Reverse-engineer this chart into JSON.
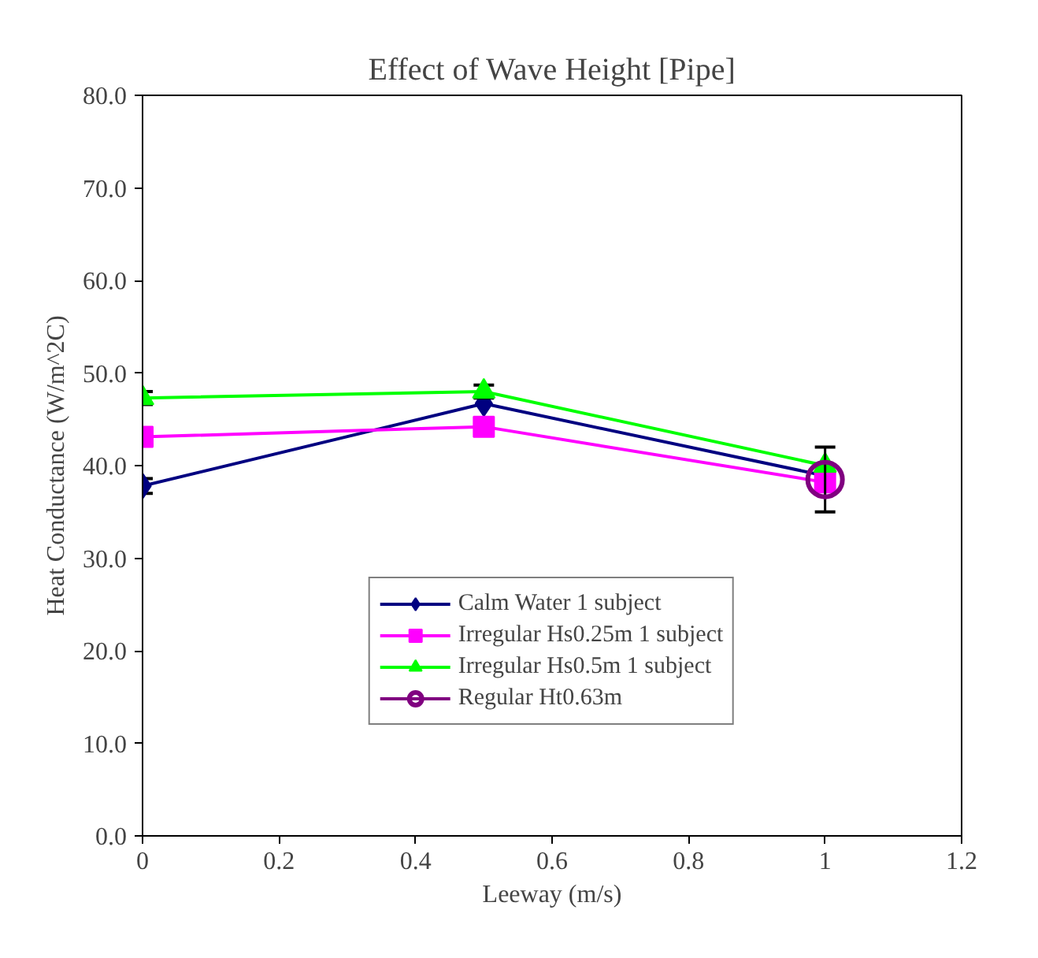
{
  "chart_data": {
    "type": "line",
    "title": "Effect of Wave Height [Pipe]",
    "xlabel": "Leeway (m/s)",
    "ylabel": "Heat Conductance (W/m^2C)",
    "xlim": [
      0,
      1.2
    ],
    "xticks": [
      0,
      0.2,
      0.4,
      0.6,
      0.8,
      1,
      1.2
    ],
    "ylim": [
      0,
      80
    ],
    "yticks": [
      {
        "value": 0,
        "label": "0.0"
      },
      {
        "value": 10,
        "label": "10.0"
      },
      {
        "value": 20,
        "label": "20.0"
      },
      {
        "value": 30,
        "label": "30.0"
      },
      {
        "value": 40,
        "label": "40.0"
      },
      {
        "value": 50,
        "label": "50.0"
      },
      {
        "value": 60,
        "label": "60.0"
      },
      {
        "value": 70,
        "label": "70.0"
      },
      {
        "value": 80,
        "label": "80.0"
      }
    ],
    "grid": false,
    "legend": "bottom",
    "series": [
      {
        "name": "Calm Water 1 subject",
        "color": "#000080",
        "marker": "diamond",
        "x": [
          0,
          0.5,
          1
        ],
        "values": [
          37.8,
          46.7,
          38.9
        ],
        "errors": [
          0.8,
          null,
          null
        ]
      },
      {
        "name": "Irregular Hs0.25m 1 subject",
        "color": "#ff00ff",
        "marker": "square",
        "x": [
          0,
          0.5,
          1
        ],
        "values": [
          43.1,
          44.2,
          38.2
        ]
      },
      {
        "name": "Irregular Hs0.5m 1 subject",
        "color": "#00ff00",
        "marker": "triangle",
        "x": [
          0,
          0.5,
          1
        ],
        "values": [
          47.3,
          48.0,
          40.0
        ],
        "errors": [
          0.7,
          0.7,
          null
        ]
      },
      {
        "name": "Regular Ht0.63m",
        "color": "#800080",
        "marker": "circle",
        "x": [
          1
        ],
        "values": [
          38.5
        ],
        "errors": [
          3.5
        ]
      }
    ]
  }
}
